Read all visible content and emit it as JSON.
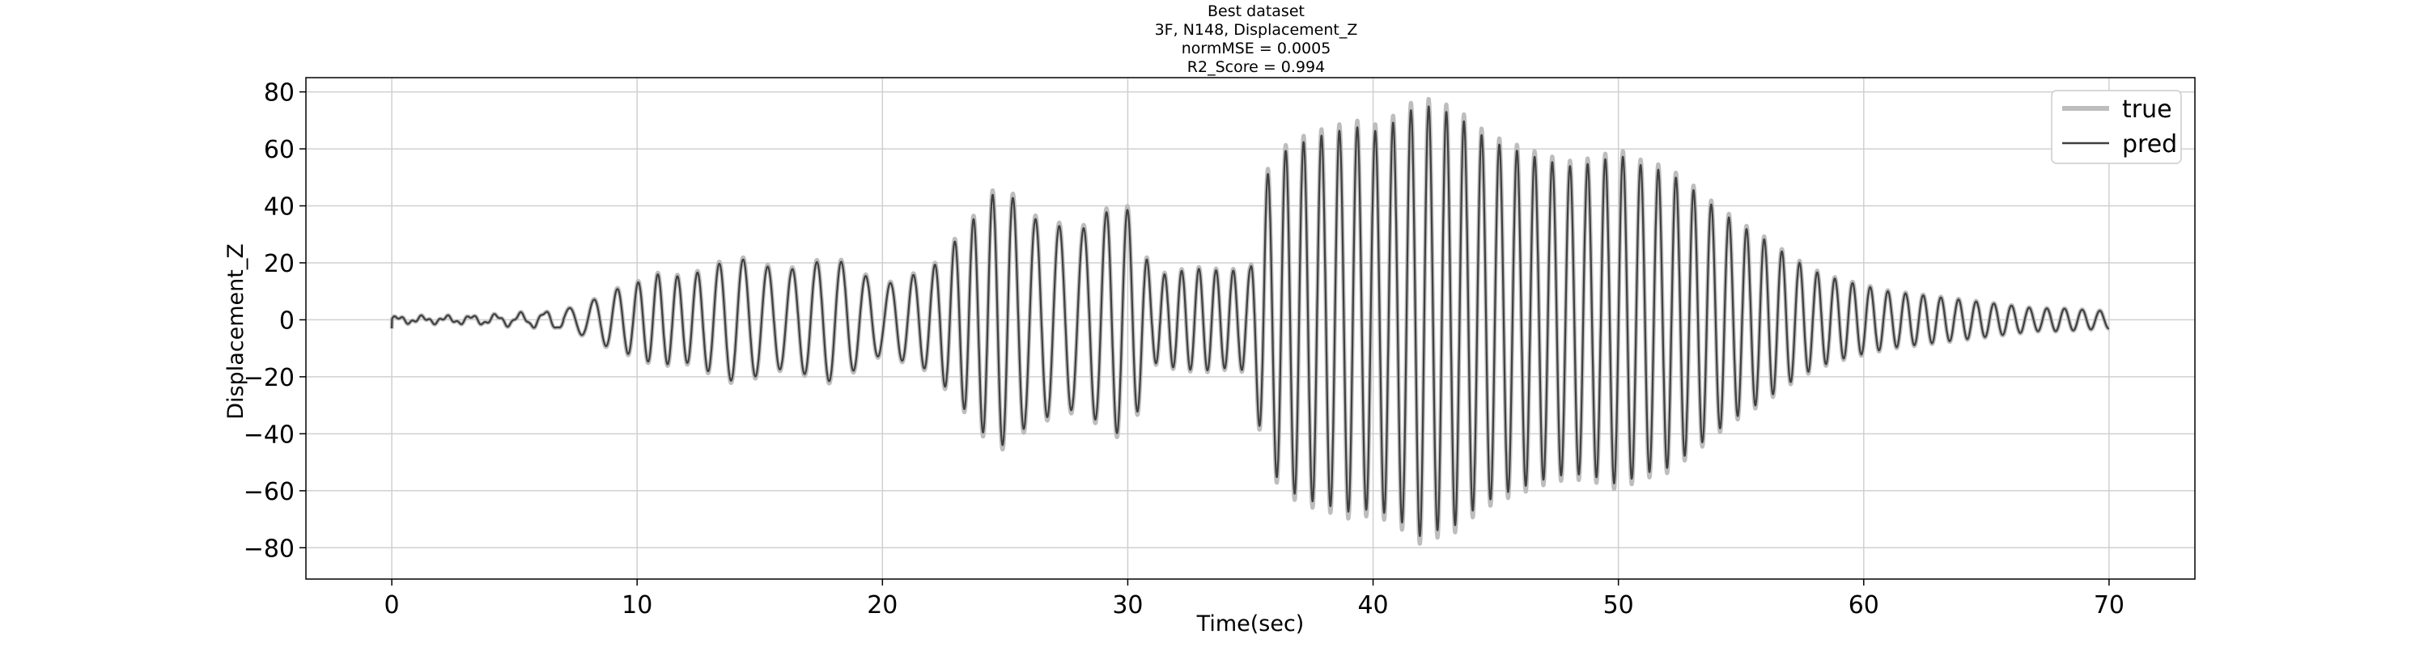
{
  "chart_data": {
    "type": "line",
    "title_lines": [
      "Best dataset",
      "3F, N148, Displacement_Z",
      "normMSE = 0.0005",
      "R2_Score = 0.994"
    ],
    "xlabel": "Time(sec)",
    "ylabel": "Displacement_Z",
    "xlim": [
      -3.5,
      73.5
    ],
    "ylim": [
      -91,
      85
    ],
    "xticks": [
      0,
      10,
      20,
      30,
      40,
      50,
      60,
      70
    ],
    "yticks": [
      -80,
      -60,
      -40,
      -20,
      0,
      20,
      40,
      60,
      80
    ],
    "grid": true,
    "legend": {
      "location": "upper right",
      "entries": [
        "true",
        "pred"
      ]
    },
    "series_style": {
      "true": {
        "color": "#bdbdbd"
      },
      "pred": {
        "color": "#404040"
      }
    },
    "signal_envelope": {
      "description_free_samples": true,
      "t": [
        0,
        2,
        4,
        6,
        7,
        8,
        8.9,
        10,
        10.8,
        12,
        14,
        16,
        18,
        20,
        22,
        23.5,
        24.5,
        25.2,
        26,
        28,
        29.5,
        30.2,
        31,
        32,
        33,
        34,
        35,
        35.6,
        36.5,
        37.6,
        38.5,
        39.2,
        40,
        41,
        41.9,
        42.6,
        43.4,
        44.2,
        45,
        46,
        47,
        48,
        49,
        50,
        51,
        52,
        53,
        54,
        55,
        56,
        57,
        58,
        59,
        60,
        61,
        62,
        63,
        64,
        65,
        66,
        67,
        68,
        69,
        70
      ],
      "amplitude": [
        1,
        1,
        1.5,
        2.5,
        3.5,
        6,
        10,
        13,
        16,
        15,
        22,
        17,
        22,
        12,
        18,
        33,
        44,
        44,
        36,
        31,
        40,
        38,
        15,
        17,
        18,
        17,
        18,
        50,
        60,
        64,
        66,
        68,
        66,
        70,
        76,
        74,
        72,
        66,
        62,
        59,
        56,
        54,
        55,
        58,
        54,
        52,
        46,
        39,
        33,
        28,
        22,
        17,
        14,
        12,
        10,
        9,
        8,
        7,
        6,
        5,
        4,
        4,
        3.5,
        3
      ],
      "period": [
        1,
        1,
        1,
        1,
        1,
        1,
        0.95,
        0.8,
        0.8,
        0.8,
        1.0,
        1.0,
        1.0,
        1.0,
        0.85,
        0.75,
        0.8,
        0.85,
        0.95,
        1.0,
        0.85,
        0.85,
        0.7,
        0.7,
        0.7,
        0.7,
        0.7,
        0.72,
        0.73,
        0.73,
        0.73,
        0.73,
        0.73,
        0.73,
        0.72,
        0.72,
        0.72,
        0.72,
        0.72,
        0.72,
        0.72,
        0.72,
        0.72,
        0.72,
        0.72,
        0.72,
        0.72,
        0.72,
        0.72,
        0.72,
        0.72,
        0.72,
        0.72,
        0.72,
        0.72,
        0.72,
        0.72,
        0.72,
        0.72,
        0.72,
        0.72,
        0.72,
        0.72,
        0.72
      ]
    }
  }
}
